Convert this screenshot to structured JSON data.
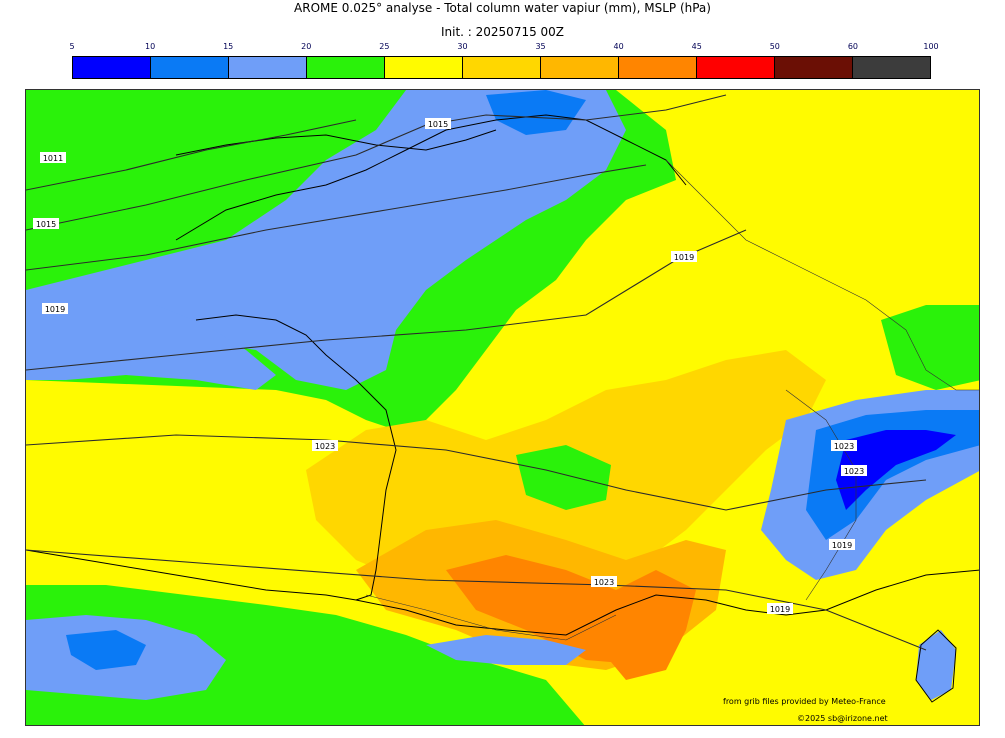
{
  "title": "AROME 0.025° analyse - Total column water vapiur (mm), MSLP (hPa)",
  "subtitle": "Init. : 20250715 00Z",
  "colorbar": {
    "ticks": [
      "5",
      "10",
      "15",
      "20",
      "25",
      "30",
      "35",
      "40",
      "45",
      "50",
      "60",
      "100"
    ],
    "colors": [
      "#0000ff",
      "#0a7af5",
      "#6f9ef8",
      "#2af20a",
      "#fffb00",
      "#ffd700",
      "#ffb700",
      "#ff8500",
      "#ff0000",
      "#6b0f05",
      "#3c3c3c"
    ]
  },
  "isobar_labels": [
    {
      "text": "1011"
    },
    {
      "text": "1015"
    },
    {
      "text": "1015"
    },
    {
      "text": "1019"
    },
    {
      "text": "1019"
    },
    {
      "text": "1023"
    },
    {
      "text": "1023"
    },
    {
      "text": "1023"
    },
    {
      "text": "1023"
    },
    {
      "text": "1019"
    },
    {
      "text": "1019"
    }
  ],
  "credits": {
    "source": "from grib files provided by Meteo-France",
    "copyright": "©2025 sb@irizone.net"
  }
}
